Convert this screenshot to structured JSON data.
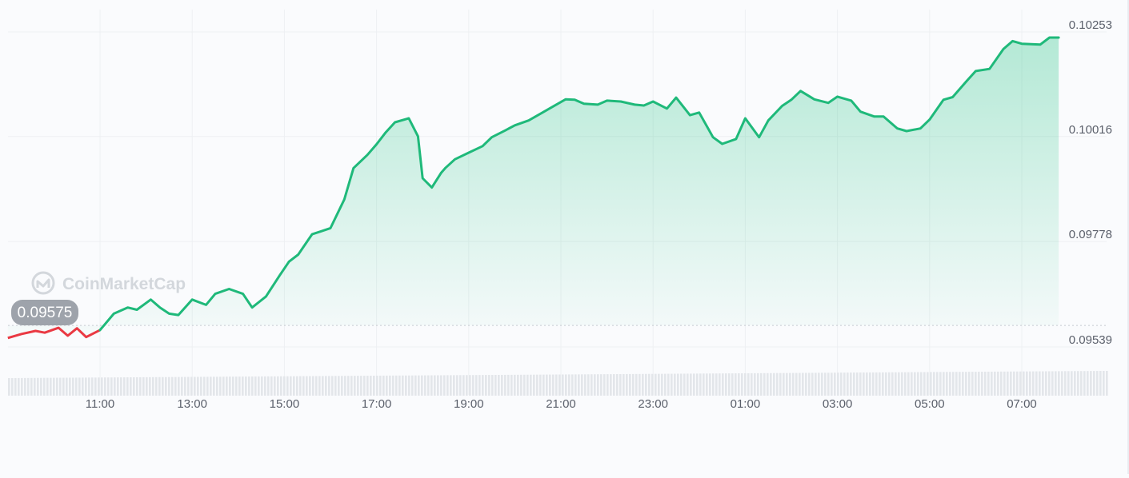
{
  "watermark": {
    "brand": "CoinMarketCap"
  },
  "current_price_label": "0.09575",
  "colors": {
    "up_line": "#1fb97a",
    "down_line": "#ea3943",
    "area_top": "#1fc281",
    "grid": "#eef0f3",
    "axis_text": "#5a5f6a",
    "price_bubble": "#9ea3ab",
    "volume_bar": "#e3e6ea"
  },
  "chart_data": {
    "type": "line",
    "title": "",
    "xlabel": "",
    "ylabel": "",
    "x_tick_labels": [
      "11:00",
      "13:00",
      "15:00",
      "17:00",
      "19:00",
      "21:00",
      "23:00",
      "01:00",
      "03:00",
      "05:00",
      "07:00"
    ],
    "y_tick_labels": [
      "0.10253",
      "0.10016",
      "0.09778",
      "0.09539"
    ],
    "y_ticks": [
      0.10253,
      0.10016,
      0.09778,
      0.09539
    ],
    "ylim": [
      0.09539,
      0.10253
    ],
    "reference_price": 0.09575,
    "grid": true,
    "series": [
      {
        "x": [
          9.0,
          9.3,
          9.6,
          9.8,
          10.1,
          10.3,
          10.5,
          10.7,
          11.0,
          11.3,
          11.6,
          11.8,
          12.1,
          12.3,
          12.5,
          12.7,
          13.0,
          13.3,
          13.5,
          13.8,
          14.1,
          14.3,
          14.6,
          14.9,
          15.1,
          15.3,
          15.6,
          15.8,
          16.0,
          16.3,
          16.5,
          16.8,
          17.0,
          17.2,
          17.4,
          17.7,
          17.9,
          18.0,
          18.2,
          18.4,
          18.5,
          18.7,
          19.0,
          19.3,
          19.5,
          19.8,
          20.0,
          20.3,
          20.6,
          20.8,
          21.1,
          21.3,
          21.5,
          21.8,
          22.0,
          22.3,
          22.6,
          22.8,
          23.0,
          23.3,
          23.5,
          23.8,
          24.0,
          24.3,
          24.5,
          24.8,
          25.0,
          25.3,
          25.5,
          25.8,
          26.0,
          26.2,
          26.5,
          26.8,
          27.0,
          27.3,
          27.5,
          27.8,
          28.0,
          28.3,
          28.5,
          28.8,
          29.0,
          29.3,
          29.5,
          29.8,
          30.0,
          30.3,
          30.6,
          30.8,
          31.0,
          31.2,
          31.4,
          31.6,
          31.8
        ],
        "y": [
          0.09543,
          0.09552,
          0.09559,
          0.09555,
          0.09566,
          0.09548,
          0.09565,
          0.09545,
          0.09561,
          0.09598,
          0.09612,
          0.09607,
          0.0963,
          0.09612,
          0.09598,
          0.09595,
          0.0963,
          0.09618,
          0.09643,
          0.09654,
          0.09643,
          0.09612,
          0.09637,
          0.09685,
          0.09716,
          0.09732,
          0.09778,
          0.09785,
          0.09792,
          0.09857,
          0.09928,
          0.09958,
          0.09982,
          0.10009,
          0.10032,
          0.10041,
          0.1,
          0.09905,
          0.09884,
          0.09917,
          0.09929,
          0.09948,
          0.09963,
          0.09978,
          0.09998,
          0.10014,
          0.10025,
          0.10036,
          0.10054,
          0.10066,
          0.10084,
          0.10083,
          0.10074,
          0.10072,
          0.10081,
          0.10079,
          0.10072,
          0.1007,
          0.10079,
          0.10063,
          0.10088,
          0.10048,
          0.10054,
          0.09998,
          0.09983,
          0.09994,
          0.10041,
          0.09998,
          0.10036,
          0.10069,
          0.10083,
          0.10103,
          0.10084,
          0.10076,
          0.1009,
          0.10081,
          0.10056,
          0.10045,
          0.10045,
          0.10018,
          0.10012,
          0.10018,
          0.10038,
          0.10083,
          0.10089,
          0.10125,
          0.10148,
          0.10153,
          0.10198,
          0.10216,
          0.1021,
          0.10209,
          0.10208,
          0.10224,
          0.10224
        ]
      }
    ]
  }
}
